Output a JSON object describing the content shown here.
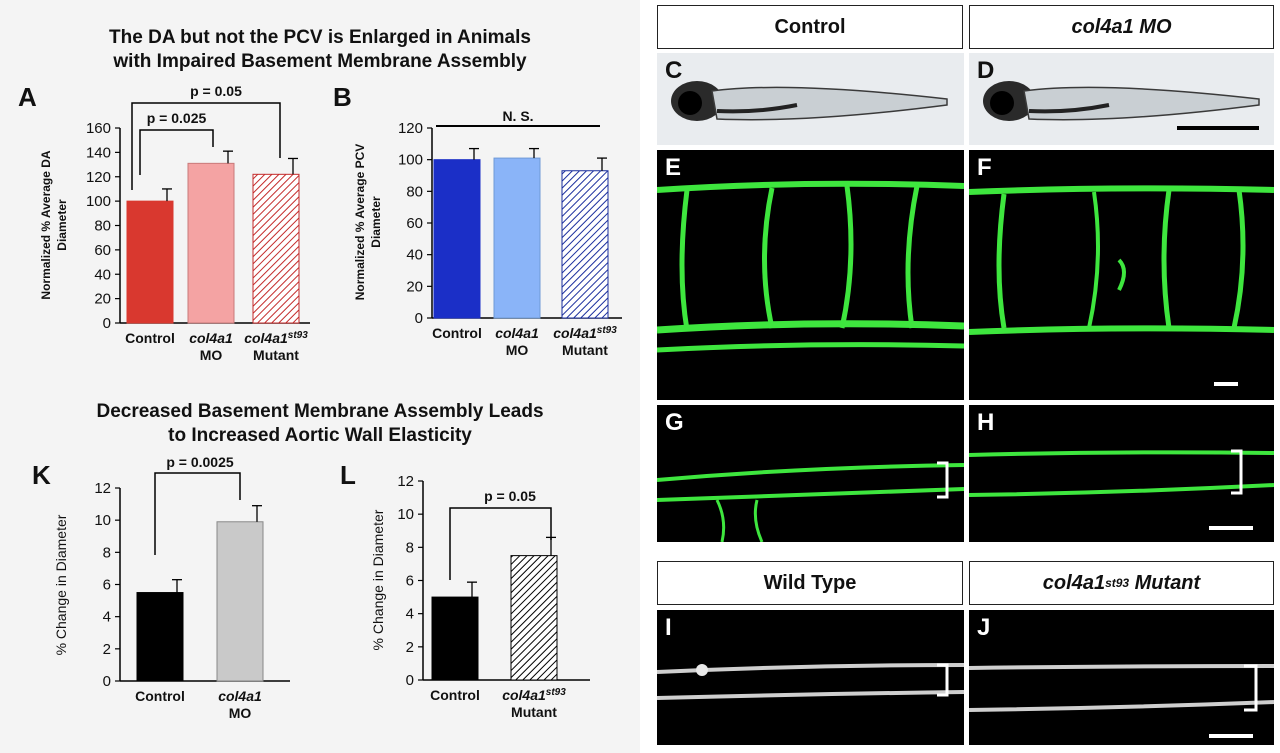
{
  "section1_title": [
    "The DA but not the PCV is Enlarged in Animals",
    "with Impaired Basement Membrane Assembly"
  ],
  "section2_title": [
    "Decreased Basement Membrane Assembly Leads",
    "to Increased Aortic Wall Elasticity"
  ],
  "panel_letters": {
    "A": "A",
    "B": "B",
    "K": "K",
    "L": "L",
    "C": "C",
    "D": "D",
    "E": "E",
    "F": "F",
    "G": "G",
    "H": "H",
    "I": "I",
    "J": "J"
  },
  "headers": {
    "control": "Control",
    "mo": "col4a1 MO",
    "wildtype": "Wild Type",
    "mutant_pre": "col4a1",
    "mutant_sup": "st93",
    "mutant_post": " Mutant"
  },
  "colors": {
    "control_red": "#d9382f",
    "mo_pink": "#f4a3a3",
    "mutant_red": "#c42b2b",
    "control_blue": "#1b2fc7",
    "mo_lightblue": "#8ab4f8",
    "mutant_blue": "#1b2f9e",
    "black": "#000000",
    "gray_bar": "#c9c9c9",
    "vessel_green": "#3ee63e"
  },
  "chart_data": [
    {
      "id": "A",
      "type": "bar",
      "ylabel": [
        "Normalized % Average DA",
        "Diameter"
      ],
      "ylim": [
        0,
        160
      ],
      "yticks": [
        0,
        20,
        40,
        60,
        80,
        100,
        120,
        140,
        160
      ],
      "categories": [
        [
          "Control"
        ],
        [
          "col4a1",
          "MO"
        ],
        [
          "col4a1st93",
          "Mutant"
        ]
      ],
      "values": [
        100,
        131,
        122
      ],
      "errors": [
        10,
        10,
        13
      ],
      "annotations": [
        {
          "text": "p = 0.025",
          "from": 0,
          "to": 1
        },
        {
          "text": "p = 0.05",
          "from": 0,
          "to": 2
        }
      ]
    },
    {
      "id": "B",
      "type": "bar",
      "ylabel": [
        "Normalized % Average PCV",
        "Diameter"
      ],
      "ylim": [
        0,
        120
      ],
      "yticks": [
        0,
        20,
        40,
        60,
        80,
        100,
        120
      ],
      "categories": [
        [
          "Control"
        ],
        [
          "col4a1",
          "MO"
        ],
        [
          "col4a1st93",
          "Mutant"
        ]
      ],
      "values": [
        100,
        101,
        93
      ],
      "errors": [
        7,
        6,
        8
      ],
      "annotations": [
        {
          "text": "N. S.",
          "from": 0,
          "to": 2
        }
      ]
    },
    {
      "id": "K",
      "type": "bar",
      "ylabel": [
        "% Change in Diameter"
      ],
      "ylim": [
        0,
        12
      ],
      "yticks": [
        0,
        2,
        4,
        6,
        8,
        10,
        12
      ],
      "categories": [
        [
          "Control"
        ],
        [
          "col4a1",
          "MO"
        ]
      ],
      "values": [
        5.5,
        9.9
      ],
      "errors": [
        0.8,
        1.0
      ],
      "annotations": [
        {
          "text": "p = 0.0025",
          "from": 0,
          "to": 1
        }
      ]
    },
    {
      "id": "L",
      "type": "bar",
      "ylabel": [
        "% Change in Diameter"
      ],
      "ylim": [
        0,
        12
      ],
      "yticks": [
        0,
        2,
        4,
        6,
        8,
        10,
        12
      ],
      "categories": [
        [
          "Control"
        ],
        [
          "col4a1st93",
          "Mutant"
        ]
      ],
      "values": [
        5.0,
        7.5
      ],
      "errors": [
        0.9,
        1.1
      ],
      "annotations": [
        {
          "text": "p = 0.05",
          "from": 0,
          "to": 1
        }
      ]
    }
  ]
}
